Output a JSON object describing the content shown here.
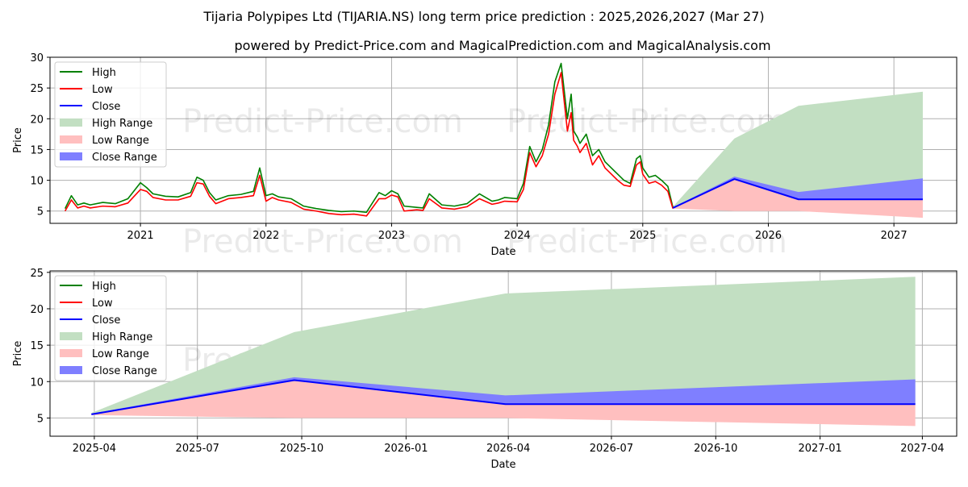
{
  "title": "Tijaria Polypipes Ltd (TIJARIA.NS) long term price prediction : 2025,2026,2027 (Mar 27)",
  "subtitle": "powered by Predict-Price.com and MagicalPrediction.com and MagicalAnalysis.com",
  "watermark": "Predict-Price.com",
  "colors": {
    "high": "#008000",
    "low": "#ff0000",
    "close": "#0000ff",
    "high_range": "#c2dfc2",
    "low_range": "#ffbfbf",
    "close_range": "#7f7fff"
  },
  "legend": [
    "High",
    "Low",
    "Close",
    "High Range",
    "Low Range",
    "Close Range"
  ],
  "chart_data": [
    {
      "type": "line",
      "title": "Tijaria Polypipes Ltd (TIJARIA.NS) long term price prediction : 2025,2026,2027 (Mar 27)",
      "xlabel": "Date",
      "ylabel": "Price",
      "xlim": [
        2020.28,
        2027.5
      ],
      "ylim": [
        3,
        30
      ],
      "x_ticks": [
        "2021",
        "2022",
        "2023",
        "2024",
        "2025",
        "2026",
        "2027"
      ],
      "x_tick_values": [
        2021,
        2022,
        2023,
        2024,
        2025,
        2026,
        2027
      ],
      "y_ticks": [
        5,
        10,
        15,
        20,
        25,
        30
      ],
      "grid": true,
      "legend_position": "top-left",
      "history": {
        "x": [
          2020.4,
          2020.45,
          2020.5,
          2020.55,
          2020.6,
          2020.7,
          2020.8,
          2020.9,
          2021.0,
          2021.05,
          2021.1,
          2021.2,
          2021.3,
          2021.4,
          2021.45,
          2021.5,
          2021.55,
          2021.6,
          2021.7,
          2021.8,
          2021.9,
          2021.95,
          2022.0,
          2022.05,
          2022.1,
          2022.2,
          2022.3,
          2022.4,
          2022.5,
          2022.6,
          2022.7,
          2022.8,
          2022.9,
          2022.95,
          2023.0,
          2023.05,
          2023.1,
          2023.2,
          2023.25,
          2023.3,
          2023.4,
          2023.5,
          2023.6,
          2023.7,
          2023.8,
          2023.85,
          2023.9,
          2024.0,
          2024.05,
          2024.1,
          2024.15,
          2024.2,
          2024.25,
          2024.3,
          2024.35,
          2024.4,
          2024.43,
          2024.45,
          2024.48,
          2024.5,
          2024.55,
          2024.6,
          2024.65,
          2024.7,
          2024.75,
          2024.8,
          2024.85,
          2024.9,
          2024.95,
          2024.98,
          2025.0,
          2025.05,
          2025.1,
          2025.15,
          2025.2,
          2025.24
        ],
        "high": [
          5.4,
          7.5,
          6.0,
          6.3,
          6.0,
          6.4,
          6.2,
          7.0,
          9.6,
          8.8,
          7.8,
          7.4,
          7.3,
          8.0,
          10.5,
          10.0,
          8.0,
          6.8,
          7.5,
          7.7,
          8.2,
          12.0,
          7.5,
          7.8,
          7.3,
          7.0,
          5.8,
          5.4,
          5.1,
          4.9,
          5.0,
          4.8,
          8.0,
          7.5,
          8.3,
          7.8,
          5.8,
          5.6,
          5.5,
          7.8,
          6.0,
          5.8,
          6.2,
          7.8,
          6.6,
          6.8,
          7.2,
          7.0,
          9.5,
          15.5,
          13.0,
          15.0,
          19.0,
          26.0,
          29.0,
          20.0,
          24.0,
          18.0,
          17.0,
          16.0,
          17.5,
          14.0,
          15.0,
          13.0,
          12.0,
          11.0,
          10.0,
          9.5,
          13.5,
          14.0,
          12.0,
          10.5,
          10.8,
          10.0,
          9.0,
          5.6
        ],
        "low": [
          5.0,
          6.8,
          5.5,
          5.8,
          5.5,
          5.8,
          5.7,
          6.3,
          8.5,
          8.2,
          7.2,
          6.8,
          6.8,
          7.4,
          9.6,
          9.4,
          7.4,
          6.2,
          7.0,
          7.2,
          7.5,
          10.8,
          6.6,
          7.2,
          6.8,
          6.4,
          5.3,
          5.0,
          4.6,
          4.4,
          4.5,
          4.2,
          7.0,
          7.0,
          7.6,
          7.3,
          5.0,
          5.2,
          5.1,
          7.0,
          5.5,
          5.3,
          5.7,
          7.0,
          6.1,
          6.3,
          6.6,
          6.5,
          8.5,
          14.5,
          12.2,
          14.0,
          17.5,
          24.0,
          27.5,
          18.0,
          21.0,
          16.5,
          15.5,
          14.5,
          16.0,
          12.5,
          14.0,
          12.0,
          11.0,
          10.0,
          9.2,
          9.0,
          12.5,
          13.0,
          11.0,
          9.5,
          9.8,
          9.2,
          8.2,
          5.4
        ]
      },
      "prediction": {
        "x": [
          2025.24,
          2025.73,
          2026.24,
          2027.23
        ],
        "close": [
          5.5,
          10.2,
          6.9,
          6.9
        ],
        "high_range_upper": [
          5.7,
          16.8,
          22.1,
          24.4
        ],
        "close_range_upper": [
          5.6,
          10.6,
          8.1,
          10.3
        ],
        "low_range_lower": [
          5.4,
          5.0,
          5.0,
          3.9
        ]
      }
    },
    {
      "type": "line",
      "xlabel": "Date",
      "ylabel": "Price",
      "xlim": [
        2025.14,
        2027.33
      ],
      "ylim": [
        2.5,
        25.2
      ],
      "x_ticks": [
        "2025-04",
        "2025-07",
        "2025-10",
        "2026-01",
        "2026-04",
        "2026-07",
        "2026-10",
        "2027-01",
        "2027-04"
      ],
      "x_tick_values": [
        2025.247,
        2025.496,
        2025.748,
        2026.0,
        2026.247,
        2026.496,
        2026.748,
        2027.0,
        2027.247
      ],
      "y_ticks": [
        5,
        10,
        15,
        20,
        25
      ],
      "grid": true,
      "legend_position": "top-left",
      "prediction": {
        "x": [
          2025.24,
          2025.73,
          2026.24,
          2027.23
        ],
        "close": [
          5.5,
          10.2,
          6.9,
          6.9
        ],
        "high_range_upper": [
          5.7,
          16.8,
          22.1,
          24.4
        ],
        "close_range_upper": [
          5.6,
          10.6,
          8.1,
          10.3
        ],
        "low_range_lower": [
          5.4,
          5.0,
          5.0,
          3.9
        ]
      }
    }
  ]
}
